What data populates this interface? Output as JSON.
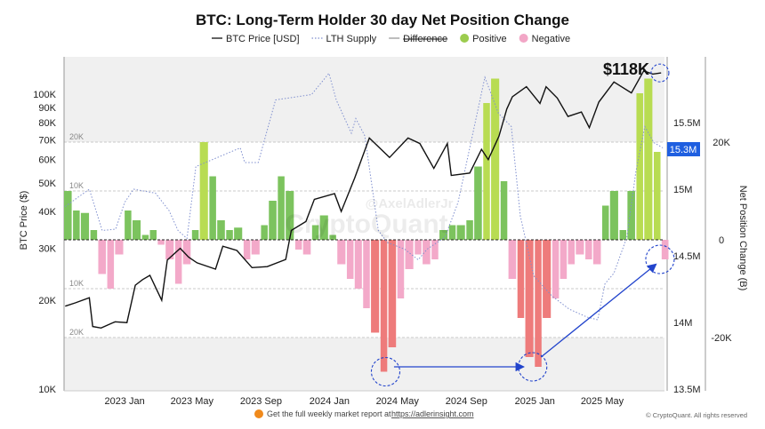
{
  "title": "BTC: Long-Term Holder 30 day Net Position Change",
  "legend": [
    {
      "label": "BTC Price [USD]",
      "symbol": "line",
      "color": "#111111"
    },
    {
      "label": "LTH Supply",
      "symbol": "dotted",
      "color": "#7f8fcf"
    },
    {
      "label": "Difference",
      "symbol": "line-struck",
      "color": "#999999"
    },
    {
      "label": "Positive",
      "symbol": "dot",
      "color": "#9ccc4e"
    },
    {
      "label": "Negative",
      "symbol": "dot",
      "color": "#f2a6c6"
    }
  ],
  "watermark": {
    "handle": "@AxelAdlerJr",
    "brand": "CryptoQuant"
  },
  "annotation": {
    "price_label": "$118K"
  },
  "footer": {
    "text": "Get the full weekly market report at",
    "link": "https://adlerinsight.com",
    "copyright": "© CryptoQuant. All rights reserved"
  },
  "colors": {
    "positive": "#7cc35e",
    "positive_strong": "#b8dc52",
    "negative": "#f3a9c9",
    "negative_strong": "#ee7b7b",
    "price": "#111111",
    "supply": "#7f8fcf",
    "annotation": "#2244cc",
    "badge": "#1f5fe0"
  },
  "chart_data": {
    "type": "bar+line",
    "title": "BTC: Long-Term Holder 30 day Net Position Change",
    "x_range": [
      "2022-09-15",
      "2025-08-20"
    ],
    "x_ticks": [
      {
        "date": "2023-01-01",
        "label": "2023 Jan"
      },
      {
        "date": "2023-05-01",
        "label": "2023 May"
      },
      {
        "date": "2023-09-01",
        "label": "2023 Sep"
      },
      {
        "date": "2024-01-01",
        "label": "2024 Jan"
      },
      {
        "date": "2024-05-01",
        "label": "2024 May"
      },
      {
        "date": "2024-09-01",
        "label": "2024 Sep"
      },
      {
        "date": "2025-01-01",
        "label": "2025 Jan"
      },
      {
        "date": "2025-05-01",
        "label": "2025 May"
      }
    ],
    "left_axis": {
      "label": "BTC Price ($)",
      "scale": "log",
      "range": [
        10000,
        250000
      ],
      "ticks": [
        {
          "value": 10000,
          "label": "10K"
        },
        {
          "value": 20000,
          "label": "20K"
        },
        {
          "value": 30000,
          "label": "30K"
        },
        {
          "value": 40000,
          "label": "40K"
        },
        {
          "value": 50000,
          "label": "50K"
        },
        {
          "value": 60000,
          "label": "60K"
        },
        {
          "value": 70000,
          "label": "70K"
        },
        {
          "value": 80000,
          "label": "80K"
        },
        {
          "value": 90000,
          "label": "90K"
        },
        {
          "value": 100000,
          "label": "100K"
        }
      ]
    },
    "supply_axis": {
      "range": [
        13.5,
        16.0
      ],
      "ticks": [
        {
          "value": 13.5,
          "label": "13.5M"
        },
        {
          "value": 14.0,
          "label": "14M"
        },
        {
          "value": 14.5,
          "label": "14.5M"
        },
        {
          "value": 15.0,
          "label": "15M"
        },
        {
          "value": 15.5,
          "label": "15.5M"
        }
      ],
      "current_label": "15.3M",
      "current_value": 15.3
    },
    "net_axis": {
      "label": "Net Position Change (B)",
      "range": [
        -30,
        37
      ],
      "ticks": [
        {
          "value": 20,
          "label": "20K"
        },
        {
          "value": 0,
          "label": "0"
        },
        {
          "value": -20,
          "label": "-20K"
        }
      ],
      "grid": [
        {
          "value": 20,
          "label": "20K"
        },
        {
          "value": 10,
          "label": "10K"
        },
        {
          "value": -10,
          "label": "10K"
        },
        {
          "value": -20,
          "label": "20K"
        }
      ]
    },
    "series": [
      {
        "name": "BTC Price [USD]",
        "type": "line",
        "points": [
          [
            "2022-09-17",
            19100
          ],
          [
            "2022-10-05",
            19600
          ],
          [
            "2022-10-30",
            20400
          ],
          [
            "2022-11-05",
            16300
          ],
          [
            "2022-11-20",
            16100
          ],
          [
            "2022-12-15",
            16900
          ],
          [
            "2023-01-05",
            16800
          ],
          [
            "2023-01-20",
            22500
          ],
          [
            "2023-02-02",
            23500
          ],
          [
            "2023-02-15",
            24300
          ],
          [
            "2023-03-08",
            20000
          ],
          [
            "2023-03-18",
            27400
          ],
          [
            "2023-04-10",
            30000
          ],
          [
            "2023-04-25",
            28000
          ],
          [
            "2023-05-10",
            26800
          ],
          [
            "2023-06-12",
            25500
          ],
          [
            "2023-06-25",
            30500
          ],
          [
            "2023-07-20",
            29500
          ],
          [
            "2023-08-16",
            25800
          ],
          [
            "2023-09-12",
            26000
          ],
          [
            "2023-10-15",
            27500
          ],
          [
            "2023-10-25",
            34500
          ],
          [
            "2023-11-20",
            37000
          ],
          [
            "2023-12-05",
            44000
          ],
          [
            "2024-01-10",
            46000
          ],
          [
            "2024-01-22",
            40000
          ],
          [
            "2024-02-15",
            52000
          ],
          [
            "2024-03-12",
            71000
          ],
          [
            "2024-04-17",
            61000
          ],
          [
            "2024-05-20",
            71000
          ],
          [
            "2024-06-10",
            68000
          ],
          [
            "2024-07-05",
            56000
          ],
          [
            "2024-07-29",
            68000
          ],
          [
            "2024-08-05",
            53000
          ],
          [
            "2024-09-07",
            54000
          ],
          [
            "2024-09-28",
            65000
          ],
          [
            "2024-10-10",
            60000
          ],
          [
            "2024-10-29",
            72000
          ],
          [
            "2024-11-12",
            89000
          ],
          [
            "2024-11-22",
            98000
          ],
          [
            "2024-12-17",
            106000
          ],
          [
            "2025-01-10",
            93000
          ],
          [
            "2025-01-21",
            106000
          ],
          [
            "2025-02-10",
            97000
          ],
          [
            "2025-03-01",
            84000
          ],
          [
            "2025-03-25",
            87000
          ],
          [
            "2025-04-08",
            77000
          ],
          [
            "2025-04-25",
            94000
          ],
          [
            "2025-05-22",
            110000
          ],
          [
            "2025-06-22",
            101000
          ],
          [
            "2025-07-14",
            120000
          ],
          [
            "2025-07-30",
            117000
          ],
          [
            "2025-08-14",
            118000
          ]
        ]
      },
      {
        "name": "LTH Supply",
        "type": "line",
        "unit": "M BTC",
        "points": [
          [
            "2022-09-17",
            14.87
          ],
          [
            "2022-10-30",
            15.0
          ],
          [
            "2022-11-22",
            14.69
          ],
          [
            "2022-12-16",
            14.7
          ],
          [
            "2023-01-01",
            14.9
          ],
          [
            "2023-01-17",
            15.0
          ],
          [
            "2023-02-25",
            14.97
          ],
          [
            "2023-03-21",
            14.84
          ],
          [
            "2023-04-06",
            14.69
          ],
          [
            "2023-04-22",
            14.63
          ],
          [
            "2023-05-08",
            15.17
          ],
          [
            "2023-07-26",
            15.31
          ],
          [
            "2023-08-03",
            15.2
          ],
          [
            "2023-08-27",
            15.2
          ],
          [
            "2023-09-27",
            15.67
          ],
          [
            "2023-10-29",
            15.69
          ],
          [
            "2023-11-30",
            15.71
          ],
          [
            "2023-12-31",
            15.87
          ],
          [
            "2024-01-13",
            15.67
          ],
          [
            "2024-02-09",
            15.42
          ],
          [
            "2024-02-17",
            15.53
          ],
          [
            "2024-03-04",
            15.4
          ],
          [
            "2024-03-28",
            14.69
          ],
          [
            "2024-04-13",
            14.6
          ],
          [
            "2024-05-14",
            14.55
          ],
          [
            "2024-06-07",
            14.47
          ],
          [
            "2024-06-23",
            14.55
          ],
          [
            "2024-07-25",
            14.64
          ],
          [
            "2024-08-17",
            14.9
          ],
          [
            "2024-10-04",
            15.84
          ],
          [
            "2024-10-28",
            15.57
          ],
          [
            "2024-11-20",
            15.47
          ],
          [
            "2024-12-06",
            14.8
          ],
          [
            "2024-12-30",
            14.35
          ],
          [
            "2025-01-31",
            14.2
          ],
          [
            "2025-03-03",
            14.1
          ],
          [
            "2025-04-04",
            14.04
          ],
          [
            "2025-04-23",
            14.02
          ],
          [
            "2025-05-06",
            14.29
          ],
          [
            "2025-05-22",
            14.37
          ],
          [
            "2025-06-14",
            14.64
          ],
          [
            "2025-06-30",
            15.13
          ],
          [
            "2025-07-16",
            15.47
          ],
          [
            "2025-08-01",
            15.35
          ],
          [
            "2025-08-17",
            15.31
          ]
        ]
      },
      {
        "name": "Net Position Change",
        "type": "bar",
        "unit": "K BTC",
        "points": [
          [
            "2022-09-15",
            10
          ],
          [
            "2022-10-01",
            6
          ],
          [
            "2022-10-15",
            5.5
          ],
          [
            "2022-11-01",
            2
          ],
          [
            "2022-11-15",
            -7
          ],
          [
            "2022-12-01",
            -10
          ],
          [
            "2022-12-15",
            -3
          ],
          [
            "2023-01-01",
            6
          ],
          [
            "2023-01-15",
            4
          ],
          [
            "2023-02-01",
            1
          ],
          [
            "2023-02-15",
            2
          ],
          [
            "2023-03-01",
            -1
          ],
          [
            "2023-03-15",
            -4
          ],
          [
            "2023-04-01",
            -9
          ],
          [
            "2023-04-15",
            -5
          ],
          [
            "2023-05-01",
            2
          ],
          [
            "2023-05-15",
            20
          ],
          [
            "2023-06-01",
            13
          ],
          [
            "2023-06-15",
            4
          ],
          [
            "2023-07-01",
            2
          ],
          [
            "2023-07-15",
            2.5
          ],
          [
            "2023-08-01",
            -4
          ],
          [
            "2023-08-15",
            -3
          ],
          [
            "2023-09-01",
            3
          ],
          [
            "2023-09-15",
            8
          ],
          [
            "2023-10-01",
            13
          ],
          [
            "2023-10-15",
            10
          ],
          [
            "2023-11-01",
            -2
          ],
          [
            "2023-11-15",
            -3
          ],
          [
            "2023-12-01",
            3
          ],
          [
            "2023-12-15",
            5
          ],
          [
            "2024-01-01",
            1
          ],
          [
            "2024-01-15",
            -5
          ],
          [
            "2024-02-01",
            -8
          ],
          [
            "2024-02-15",
            -10
          ],
          [
            "2024-03-01",
            -14
          ],
          [
            "2024-03-15",
            -19
          ],
          [
            "2024-04-01",
            -27
          ],
          [
            "2024-04-15",
            -22
          ],
          [
            "2024-05-01",
            -12
          ],
          [
            "2024-05-15",
            -6
          ],
          [
            "2024-06-01",
            -3
          ],
          [
            "2024-06-15",
            -5
          ],
          [
            "2024-07-01",
            -4
          ],
          [
            "2024-07-15",
            2
          ],
          [
            "2024-08-01",
            3
          ],
          [
            "2024-08-15",
            3
          ],
          [
            "2024-09-01",
            4
          ],
          [
            "2024-09-15",
            15
          ],
          [
            "2024-10-01",
            28
          ],
          [
            "2024-10-15",
            33
          ],
          [
            "2024-11-01",
            12
          ],
          [
            "2024-11-15",
            -8
          ],
          [
            "2024-12-01",
            -16
          ],
          [
            "2024-12-15",
            -24
          ],
          [
            "2025-01-01",
            -26
          ],
          [
            "2025-01-15",
            -16
          ],
          [
            "2025-02-01",
            -12
          ],
          [
            "2025-02-15",
            -8
          ],
          [
            "2025-03-01",
            -5
          ],
          [
            "2025-03-15",
            -3
          ],
          [
            "2025-04-01",
            -4
          ],
          [
            "2025-04-15",
            -5
          ],
          [
            "2025-05-01",
            7
          ],
          [
            "2025-05-15",
            10
          ],
          [
            "2025-06-01",
            2
          ],
          [
            "2025-06-15",
            10
          ],
          [
            "2025-07-01",
            30
          ],
          [
            "2025-07-15",
            33
          ],
          [
            "2025-08-01",
            18
          ],
          [
            "2025-08-15",
            -4
          ]
        ]
      }
    ],
    "highlights": [
      {
        "date": "2024-04-10",
        "net": -27
      },
      {
        "date": "2024-12-28",
        "net": -26
      },
      {
        "date": "2025-08-12",
        "net": -4
      },
      {
        "date": "2025-08-12",
        "price": 118000
      }
    ],
    "arrows": [
      {
        "from": {
          "date": "2024-04-25",
          "net": -26
        },
        "to": {
          "date": "2024-12-12",
          "net": -26
        }
      },
      {
        "from": {
          "date": "2025-01-12",
          "net": -24
        },
        "to": {
          "date": "2025-08-05",
          "net": -5
        }
      }
    ],
    "legend_position": "top"
  }
}
